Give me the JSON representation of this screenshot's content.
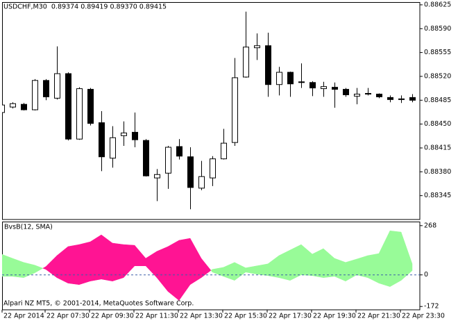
{
  "chart_data": [
    {
      "type": "candlestick",
      "title": "USDCHF,M30  0.89374 0.89419 0.89370 0.89415",
      "categories": [
        "22 Apr 2014",
        null,
        null,
        null,
        "22 Apr 07:30",
        null,
        null,
        null,
        "22 Apr 09:30",
        null,
        null,
        null,
        "22 Apr 11:30",
        null,
        null,
        null,
        "22 Apr 13:30",
        null,
        null,
        null,
        "22 Apr 15:30",
        null,
        null,
        null,
        "22 Apr 17:30",
        null,
        null,
        null,
        "22 Apr 19:30",
        null,
        null,
        null,
        "22 Apr 21:30",
        null,
        null,
        null,
        "22 Apr 23:30",
        null
      ],
      "open": [
        0.88467,
        0.88475,
        0.88479,
        0.88471,
        0.88514,
        0.88488,
        0.88524,
        0.88428,
        0.88501,
        0.88452,
        0.884,
        0.88433,
        0.88438,
        0.88426,
        0.88371,
        0.88378,
        0.88417,
        0.88402,
        0.88356,
        0.88371,
        0.88399,
        0.88423,
        0.88519,
        0.88562,
        0.88565,
        0.88508,
        0.88526,
        0.88511,
        0.88511,
        0.88502,
        0.88504,
        0.88501,
        0.88491,
        0.88494,
        0.88494,
        0.88489,
        0.88487,
        0.88489
      ],
      "high": [
        0.88479,
        0.88482,
        0.88481,
        0.88516,
        0.88516,
        0.88564,
        0.88526,
        0.88504,
        0.88503,
        0.88469,
        0.88447,
        0.88454,
        0.88467,
        0.88428,
        0.88384,
        0.88418,
        0.88428,
        0.88416,
        0.88396,
        0.88403,
        0.88443,
        0.88547,
        0.88615,
        0.88583,
        0.88584,
        0.88534,
        0.88527,
        0.88539,
        0.88513,
        0.88512,
        0.88511,
        0.88503,
        0.88503,
        0.88503,
        0.88495,
        0.88492,
        0.88492,
        0.88494
      ],
      "low": [
        0.88466,
        0.88473,
        0.8847,
        0.8847,
        0.88485,
        0.88486,
        0.88426,
        0.88427,
        0.88448,
        0.88381,
        0.88386,
        0.88418,
        0.88416,
        0.88373,
        0.88337,
        0.88355,
        0.88398,
        0.88325,
        0.88353,
        0.88359,
        0.88398,
        0.88418,
        0.88518,
        0.88544,
        0.8849,
        0.88492,
        0.8849,
        0.88503,
        0.88491,
        0.8849,
        0.88474,
        0.8849,
        0.88479,
        0.88492,
        0.88488,
        0.88482,
        0.88481,
        0.88482
      ],
      "close": [
        0.88478,
        0.8848,
        0.88471,
        0.88514,
        0.8849,
        0.88524,
        0.88428,
        0.88502,
        0.88451,
        0.88402,
        0.8843,
        0.88437,
        0.88427,
        0.88374,
        0.88376,
        0.88416,
        0.88403,
        0.88357,
        0.88373,
        0.88399,
        0.88422,
        0.88518,
        0.88563,
        0.88565,
        0.88508,
        0.88526,
        0.88509,
        0.88512,
        0.88503,
        0.88505,
        0.88501,
        0.88493,
        0.88494,
        0.88495,
        0.8849,
        0.88486,
        0.88487,
        0.88485
      ],
      "up_color": "#ffffff",
      "down_color": "#000000",
      "ylim": [
        0.8831,
        0.88629
      ],
      "yticks": [
        0.88625,
        {
          "value": 0.8859,
          "label": "0.88590"
        },
        0.88555,
        {
          "value": 0.8852,
          "label": "0.88520"
        },
        0.88485,
        {
          "value": 0.8845,
          "label": "0.88450"
        },
        0.88415,
        {
          "value": 0.8838,
          "label": "0.88380"
        },
        0.88345
      ]
    },
    {
      "type": "filling",
      "title": "BvsB(12, SMA)",
      "annotation": "Alpari NZ MT5, © 2001-2014, MetaQuotes Software Corp.",
      "series": [
        {
          "color": "#98fb98",
          "values": [
            113,
            90,
            68,
            53,
            30,
            -15,
            -45,
            -53,
            -34,
            -23,
            -34,
            -15,
            49,
            49,
            -15,
            -90,
            -139,
            -53,
            -15,
            30,
            41,
            68,
            38,
            49,
            60,
            105,
            135,
            165,
            113,
            143,
            90,
            68,
            86,
            105,
            116,
            240,
            233,
            60
          ]
        },
        {
          "color": "#ff1493",
          "values": [
            -8,
            -8,
            -15,
            11,
            45,
            105,
            154,
            165,
            180,
            218,
            173,
            165,
            161,
            90,
            128,
            154,
            188,
            199,
            90,
            15,
            -8,
            -30,
            15,
            4,
            -4,
            -15,
            -30,
            0,
            -4,
            -15,
            -8,
            -34,
            0,
            -15,
            -45,
            -64,
            -30,
            23
          ]
        }
      ],
      "ylim": [
        -190,
        290
      ],
      "yticks": [
        268,
        0,
        -172
      ]
    }
  ]
}
